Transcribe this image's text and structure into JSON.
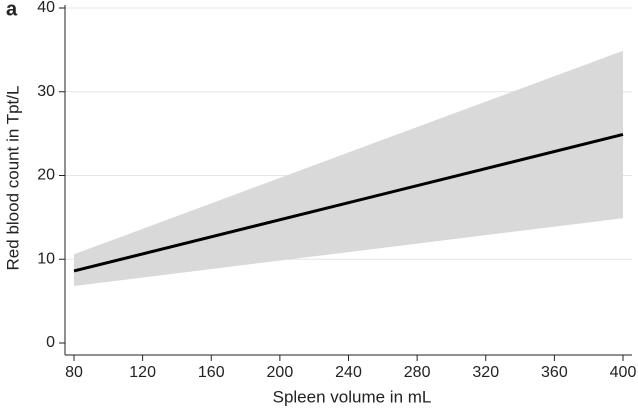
{
  "chart_data": {
    "type": "line",
    "panel_label": "a",
    "x_label": "Spleen volume in mL",
    "y_label": "Red blood count in Tpt/L",
    "x": [
      80,
      400
    ],
    "values": [
      8.6,
      24.9
    ],
    "color": "#000000",
    "band": {
      "lower": [
        6.8,
        14.9
      ],
      "upper": [
        10.6,
        34.9
      ],
      "color": "#d9d9d9"
    },
    "xlim": [
      80,
      400
    ],
    "xticks": [
      80,
      120,
      160,
      200,
      240,
      280,
      320,
      360,
      400
    ],
    "ylim": [
      0,
      40
    ],
    "yticks": [
      0,
      10,
      20,
      30,
      40
    ],
    "grid": true
  }
}
